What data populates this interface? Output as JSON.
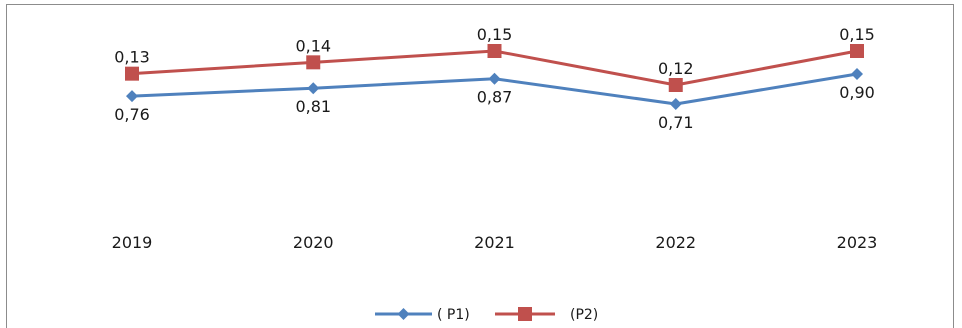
{
  "chart_data": {
    "type": "line",
    "categories": [
      "2019",
      "2020",
      "2021",
      "2022",
      "2023"
    ],
    "series": [
      {
        "name": "( P1)",
        "values": [
          0.76,
          0.81,
          0.87,
          0.71,
          0.9
        ],
        "labels": [
          "0,76",
          "0,81",
          "0,87",
          "0,71",
          "0,90"
        ],
        "color": "#4f81bd",
        "marker": "diamond",
        "label_position": "below"
      },
      {
        "name": "(P2)",
        "values": [
          0.13,
          0.14,
          0.15,
          0.12,
          0.15
        ],
        "labels": [
          "0,13",
          "0,14",
          "0,15",
          "0,12",
          "0,15"
        ],
        "color": "#c0504d",
        "marker": "square",
        "label_position": "above"
      }
    ],
    "legend_position": "bottom",
    "grid": false
  }
}
